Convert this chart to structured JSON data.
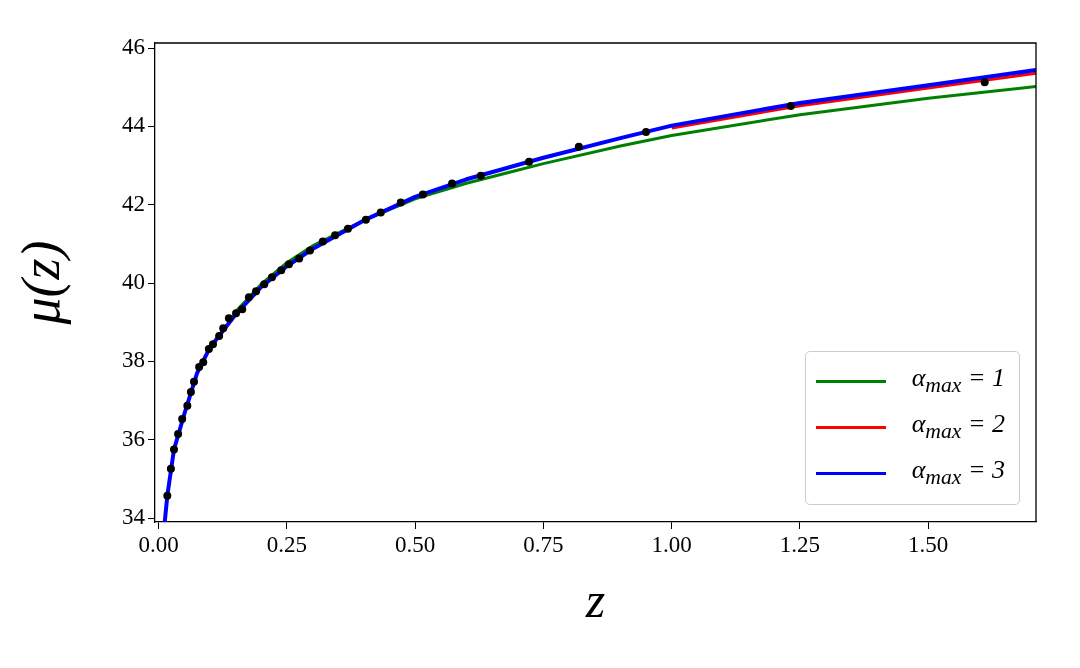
{
  "chart_data": {
    "type": "line",
    "xlabel": "z",
    "ylabel": "μ(z)",
    "xlim": [
      -0.007,
      1.71
    ],
    "ylim": [
      33.9,
      46.13
    ],
    "xticks": [
      {
        "value": 0,
        "label": "0.00"
      },
      {
        "value": 0.25,
        "label": "0.25"
      },
      {
        "value": 0.5,
        "label": "0.50"
      },
      {
        "value": 0.75,
        "label": "0.75"
      },
      {
        "value": 1,
        "label": "1.00"
      },
      {
        "value": 1.25,
        "label": "1.25"
      },
      {
        "value": 1.5,
        "label": "1.50"
      }
    ],
    "yticks": [
      34,
      36,
      38,
      40,
      42,
      44,
      46
    ],
    "grid": false,
    "legend": "bottom right",
    "marker": "none",
    "line_style": "solid",
    "series": [
      {
        "name": "α$_{max}$ = 1",
        "color": "#008000",
        "x": [
          0.15,
          0.2,
          0.25,
          0.3,
          0.4,
          0.5,
          0.6,
          0.75,
          0.9,
          1.0,
          1.25,
          1.5,
          1.71
        ],
        "values": [
          39.27,
          39.97,
          40.52,
          40.95,
          41.6,
          42.15,
          42.55,
          43.05,
          43.5,
          43.77,
          44.3,
          44.72,
          45.02
        ]
      },
      {
        "name": "α$_{max}$ = 2",
        "color": "#ff0000",
        "x": [
          1.0,
          1.25,
          1.5,
          1.71
        ],
        "values": [
          43.96,
          44.53,
          44.98,
          45.36
        ]
      },
      {
        "name": "α$_{max}$ = 3",
        "color": "#0000ff",
        "x": [
          0.012,
          0.017,
          0.03,
          0.05,
          0.075,
          0.1,
          0.15,
          0.2,
          0.25,
          0.3,
          0.4,
          0.5,
          0.6,
          0.75,
          0.9,
          1.0,
          1.25,
          1.5,
          1.71
        ],
        "values": [
          33.9,
          34.57,
          35.75,
          36.65,
          37.7,
          38.35,
          39.2,
          39.9,
          40.43,
          40.87,
          41.6,
          42.2,
          42.65,
          43.2,
          43.7,
          44.02,
          44.6,
          45.05,
          45.44
        ]
      },
      {
        "type": "scatter",
        "marker": "circle",
        "color": "#000000",
        "x": [
          0.017,
          0.024,
          0.03,
          0.038,
          0.046,
          0.056,
          0.063,
          0.069,
          0.079,
          0.087,
          0.098,
          0.106,
          0.118,
          0.126,
          0.137,
          0.151,
          0.163,
          0.176,
          0.19,
          0.206,
          0.221,
          0.239,
          0.254,
          0.274,
          0.295,
          0.32,
          0.344,
          0.369,
          0.404,
          0.433,
          0.472,
          0.515,
          0.572,
          0.628,
          0.722,
          0.819,
          0.95,
          1.232,
          1.61
        ],
        "values": [
          34.57,
          35.26,
          35.75,
          36.15,
          36.53,
          36.87,
          37.22,
          37.48,
          37.86,
          37.98,
          38.32,
          38.44,
          38.65,
          38.85,
          39.1,
          39.23,
          39.33,
          39.64,
          39.79,
          39.97,
          40.15,
          40.33,
          40.48,
          40.63,
          40.83,
          41.06,
          41.22,
          41.39,
          41.62,
          41.8,
          42.06,
          42.26,
          42.54,
          42.74,
          43.1,
          43.48,
          43.86,
          44.52,
          45.13
        ]
      }
    ]
  }
}
